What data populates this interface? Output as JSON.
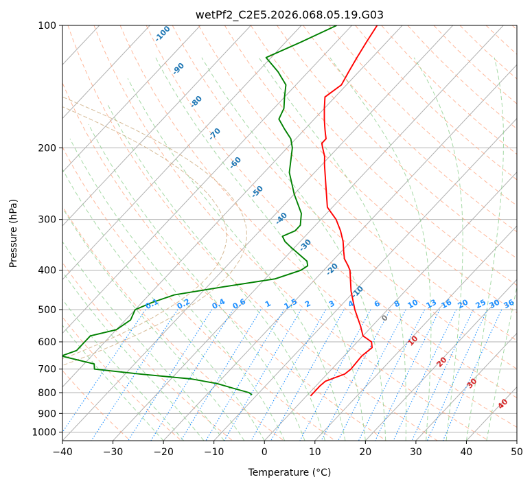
{
  "chart_data": {
    "type": "line",
    "title": "wetPf2_C2E5.2026.068.05.19.G03",
    "xlabel": "Temperature (°C)",
    "ylabel": "Pressure (hPa)",
    "xlim": [
      -40,
      50
    ],
    "ylim": [
      1050,
      100
    ],
    "x_ticks": [
      -40,
      -30,
      -20,
      -10,
      0,
      10,
      20,
      30,
      40,
      50
    ],
    "y_ticks": [
      100,
      200,
      300,
      400,
      500,
      600,
      700,
      800,
      900,
      1000
    ],
    "series": [
      {
        "name": "temperature",
        "color": "#ff0000",
        "points": [
          [
            100,
            -55
          ],
          [
            110,
            -54
          ],
          [
            120,
            -53
          ],
          [
            130,
            -52
          ],
          [
            140,
            -51
          ],
          [
            150,
            -52
          ],
          [
            160,
            -50
          ],
          [
            170,
            -48
          ],
          [
            175,
            -47
          ],
          [
            180,
            -46
          ],
          [
            185,
            -45
          ],
          [
            190,
            -44
          ],
          [
            195,
            -44
          ],
          [
            200,
            -43
          ],
          [
            210,
            -41
          ],
          [
            220,
            -39.5
          ],
          [
            250,
            -35
          ],
          [
            280,
            -31
          ],
          [
            300,
            -27
          ],
          [
            320,
            -24
          ],
          [
            340,
            -21.5
          ],
          [
            360,
            -19.5
          ],
          [
            375,
            -18
          ],
          [
            390,
            -16
          ],
          [
            400,
            -14.8
          ],
          [
            450,
            -10.7
          ],
          [
            500,
            -6.5
          ],
          [
            550,
            -2.2
          ],
          [
            580,
            0
          ],
          [
            600,
            2.8
          ],
          [
            620,
            4
          ],
          [
            650,
            3.5
          ],
          [
            700,
            3.8
          ],
          [
            720,
            3.5
          ],
          [
            750,
            1
          ],
          [
            770,
            0.8
          ],
          [
            800,
            0.8
          ],
          [
            815,
            0.8
          ]
        ]
      },
      {
        "name": "dewpoint",
        "color": "#008000",
        "points": [
          [
            100,
            -63
          ],
          [
            110,
            -67
          ],
          [
            120,
            -71
          ],
          [
            130,
            -66
          ],
          [
            140,
            -62
          ],
          [
            150,
            -60
          ],
          [
            160,
            -58
          ],
          [
            170,
            -57
          ],
          [
            180,
            -54
          ],
          [
            190,
            -51
          ],
          [
            200,
            -49
          ],
          [
            230,
            -45
          ],
          [
            260,
            -40
          ],
          [
            290,
            -35
          ],
          [
            310,
            -33
          ],
          [
            320,
            -33
          ],
          [
            330,
            -34.5
          ],
          [
            340,
            -33
          ],
          [
            350,
            -31
          ],
          [
            380,
            -25
          ],
          [
            390,
            -24
          ],
          [
            400,
            -24.5
          ],
          [
            420,
            -28
          ],
          [
            440,
            -37
          ],
          [
            460,
            -45
          ],
          [
            480,
            -48
          ],
          [
            500,
            -50
          ],
          [
            530,
            -49
          ],
          [
            560,
            -50
          ],
          [
            580,
            -54
          ],
          [
            600,
            -54
          ],
          [
            630,
            -54
          ],
          [
            650,
            -56
          ],
          [
            680,
            -48
          ],
          [
            700,
            -47
          ],
          [
            720,
            -37
          ],
          [
            740,
            -26
          ],
          [
            760,
            -20
          ],
          [
            780,
            -16
          ],
          [
            800,
            -12
          ],
          [
            810,
            -11
          ]
        ]
      }
    ],
    "dry_adiabats_label": [
      -100,
      -90,
      -80,
      -70,
      -60,
      -50,
      -40,
      -30,
      -20,
      -10,
      0,
      10,
      20,
      30,
      40
    ],
    "mixing_ratio_labels": [
      "0.1",
      "0.2",
      "0.4",
      "0.6",
      "1",
      "1.5",
      "2",
      "3",
      "4",
      "6",
      "8",
      "10",
      "13",
      "16",
      "20",
      "25",
      "30",
      "36"
    ],
    "colors": {
      "isotherm": "#b0b0b0",
      "dry_adiabat": "#ffa07a",
      "moist_adiabat": "#8fcf8f",
      "mixing_ratio": "#1e90ff",
      "blue_label": "#1f77b4",
      "red_label": "#d62728",
      "gray_label": "#808080",
      "freezing_arc": "#d2b48c"
    }
  }
}
